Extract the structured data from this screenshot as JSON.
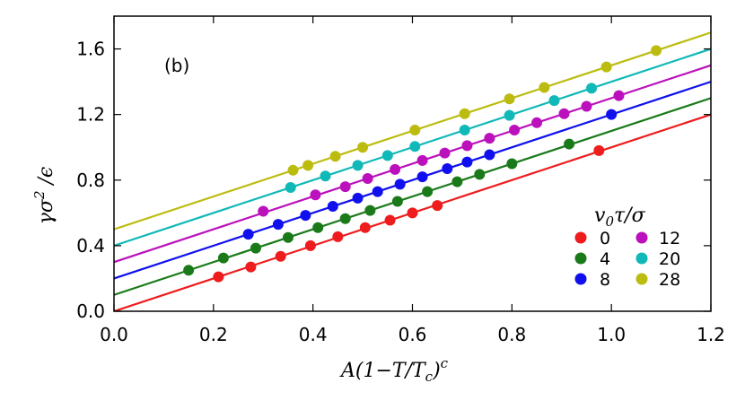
{
  "chart_data": {
    "type": "scatter",
    "panel_label": "(b)",
    "xlabel": "A(1−T/T",
    "xlabel_sub": "c",
    "xlabel_close": ")",
    "xlabel_sup": "c",
    "ylabel": "γσ",
    "ylabel_sup": "2",
    "ylabel_tail": " /ϵ",
    "xlim": [
      0.0,
      1.2
    ],
    "ylim": [
      0.0,
      1.8
    ],
    "xticks": [
      0.0,
      0.2,
      0.4,
      0.6,
      0.8,
      1.0,
      1.2
    ],
    "xtick_labels": [
      "0.0",
      "0.2",
      "0.4",
      "0.6",
      "0.8",
      "1.0",
      "1.2"
    ],
    "yticks": [
      0.0,
      0.4,
      0.8,
      1.2,
      1.6
    ],
    "ytick_labels": [
      "0.0",
      "0.4",
      "0.8",
      "1.2",
      "1.6"
    ],
    "legend": {
      "title": "v",
      "title_sub": "0",
      "title_tail": "τ/σ",
      "placement": "lower-right"
    },
    "series": [
      {
        "name": "0",
        "color": "#ee1c1c",
        "fit": {
          "intercept": 0.0,
          "slope": 1.0
        },
        "x": [
          0.21,
          0.275,
          0.335,
          0.395,
          0.45,
          0.505,
          0.555,
          0.6,
          0.65,
          0.975
        ],
        "y": [
          0.21,
          0.27,
          0.335,
          0.4,
          0.455,
          0.51,
          0.555,
          0.6,
          0.645,
          0.98
        ]
      },
      {
        "name": "4",
        "color": "#1a7a1a",
        "fit": {
          "intercept": 0.1,
          "slope": 1.0
        },
        "x": [
          0.15,
          0.22,
          0.285,
          0.35,
          0.41,
          0.465,
          0.515,
          0.57,
          0.63,
          0.69,
          0.735,
          0.8,
          0.915
        ],
        "y": [
          0.25,
          0.325,
          0.385,
          0.45,
          0.51,
          0.565,
          0.615,
          0.67,
          0.73,
          0.79,
          0.835,
          0.9,
          1.02
        ]
      },
      {
        "name": "8",
        "color": "#1010ee",
        "fit": {
          "intercept": 0.2,
          "slope": 1.0
        },
        "x": [
          0.27,
          0.33,
          0.385,
          0.44,
          0.49,
          0.53,
          0.575,
          0.62,
          0.67,
          0.71,
          0.755,
          1.0
        ],
        "y": [
          0.47,
          0.53,
          0.585,
          0.64,
          0.69,
          0.73,
          0.775,
          0.82,
          0.87,
          0.91,
          0.955,
          1.2
        ]
      },
      {
        "name": "12",
        "color": "#bb10bb",
        "fit": {
          "intercept": 0.3,
          "slope": 1.0
        },
        "x": [
          0.3,
          0.405,
          0.465,
          0.51,
          0.565,
          0.62,
          0.665,
          0.71,
          0.755,
          0.805,
          0.85,
          0.905,
          0.95,
          1.015
        ],
        "y": [
          0.61,
          0.71,
          0.76,
          0.81,
          0.865,
          0.92,
          0.965,
          1.01,
          1.055,
          1.105,
          1.15,
          1.205,
          1.25,
          1.315
        ]
      },
      {
        "name": "20",
        "color": "#10b8b8",
        "fit": {
          "intercept": 0.4,
          "slope": 1.0
        },
        "x": [
          0.355,
          0.425,
          0.49,
          0.55,
          0.605,
          0.705,
          0.795,
          0.885,
          0.96
        ],
        "y": [
          0.755,
          0.825,
          0.89,
          0.95,
          1.005,
          1.105,
          1.195,
          1.285,
          1.36
        ]
      },
      {
        "name": "28",
        "color": "#bcbc10",
        "fit": {
          "intercept": 0.5,
          "slope": 1.0
        },
        "x": [
          0.36,
          0.39,
          0.445,
          0.5,
          0.605,
          0.705,
          0.795,
          0.865,
          0.99,
          1.09
        ],
        "y": [
          0.86,
          0.89,
          0.945,
          1.0,
          1.105,
          1.205,
          1.295,
          1.365,
          1.49,
          1.59
        ]
      }
    ]
  }
}
